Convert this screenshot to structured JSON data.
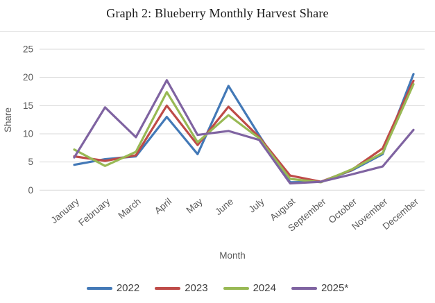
{
  "page": {
    "background": "#ffffff",
    "divider_color": "#e7e7e7"
  },
  "chart_data": {
    "type": "line",
    "title": "Graph 2: Blueberry Monthly Harvest Share",
    "xlabel": "Month",
    "ylabel": "Share",
    "ylim": [
      0,
      25
    ],
    "yticks": [
      0,
      5,
      10,
      15,
      20,
      25
    ],
    "grid": "horizontal",
    "gridline_color": "#d9d9d9",
    "axis_text_color": "#595959",
    "legend_position": "bottom",
    "categories": [
      "January",
      "February",
      "March",
      "April",
      "May",
      "June",
      "July",
      "August",
      "September",
      "October",
      "November",
      "December"
    ],
    "series": [
      {
        "name": "2022",
        "color": "#4379B7",
        "values": [
          4.5,
          5.5,
          6.0,
          13.0,
          6.4,
          18.5,
          9.7,
          1.4,
          1.5,
          3.5,
          6.4,
          20.6
        ]
      },
      {
        "name": "2023",
        "color": "#BE4B48",
        "values": [
          6.0,
          5.2,
          6.2,
          15.0,
          8.0,
          14.8,
          9.4,
          2.6,
          1.5,
          3.6,
          7.4,
          19.4
        ]
      },
      {
        "name": "2024",
        "color": "#98B954",
        "values": [
          7.2,
          4.3,
          6.8,
          17.4,
          8.5,
          13.3,
          9.2,
          2.0,
          1.4,
          3.7,
          6.6,
          18.8
        ]
      },
      {
        "name": "2025*",
        "color": "#7F63A1",
        "values": [
          5.8,
          14.7,
          9.4,
          19.5,
          9.8,
          10.5,
          8.9,
          1.2,
          1.5,
          2.8,
          4.2,
          10.7
        ]
      }
    ]
  }
}
